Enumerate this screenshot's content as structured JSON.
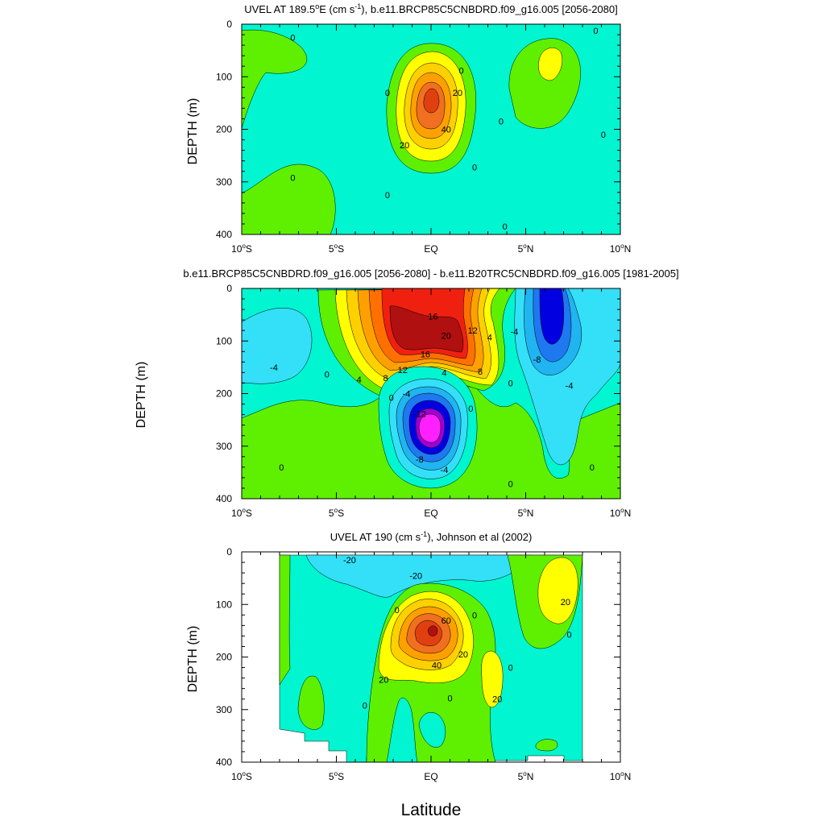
{
  "chart_data": [
    {
      "type": "heatmap",
      "subtype": "filled-contour",
      "title": "UVEL AT 189.5°E (cm s⁻¹), b.e11.BRCP85C5CNBDRD.f09_g16.005 [2056-2080]",
      "title_parts": {
        "a": "UVEL AT 189.5",
        "sup1": "o",
        "b": "E (cm s",
        "sup2": "-1",
        "c": "), b.e11.BRCP85C5CNBDRD.f09_g16.005 [2056-2080]"
      },
      "ylabel": "DEPTH (m)",
      "ylim": [
        400,
        0
      ],
      "xlim": [
        -10,
        10
      ],
      "yticks": [
        "0",
        "100",
        "200",
        "300",
        "400"
      ],
      "xticks": [
        {
          "pre": "10",
          "suf": "S"
        },
        {
          "pre": "5",
          "suf": "S"
        },
        {
          "pre": "EQ",
          "suf": ""
        },
        {
          "pre": "5",
          "suf": "N"
        },
        {
          "pre": "10",
          "suf": "N"
        }
      ],
      "contour_labels": [
        {
          "text": "0",
          "x": -7.3,
          "y": 25
        },
        {
          "text": "0",
          "x": -2.3,
          "y": 130
        },
        {
          "text": "20",
          "x": 1.4,
          "y": 130
        },
        {
          "text": "0",
          "x": 1.6,
          "y": 88
        },
        {
          "text": "40",
          "x": 0.8,
          "y": 200
        },
        {
          "text": "20",
          "x": -1.4,
          "y": 230
        },
        {
          "text": "0",
          "x": 3.7,
          "y": 185
        },
        {
          "text": "0",
          "x": 8.7,
          "y": 12
        },
        {
          "text": "0",
          "x": 9.1,
          "y": 210
        },
        {
          "text": "0",
          "x": -7.3,
          "y": 292
        },
        {
          "text": "0",
          "x": -2.3,
          "y": 325
        },
        {
          "text": "0",
          "x": 2.3,
          "y": 272
        },
        {
          "text": "0",
          "x": 3.9,
          "y": 385
        }
      ]
    },
    {
      "type": "heatmap",
      "subtype": "filled-contour",
      "title": "b.e11.BRCP85C5CNBDRD.f09_g16.005 [2056-2080] - b.e11.B20TRC5CNBDRD.f09_g16.005 [1981-2005]",
      "ylabel": "DEPTH (m)",
      "ylim": [
        400,
        0
      ],
      "xlim": [
        -10,
        10
      ],
      "yticks": [
        "0",
        "100",
        "200",
        "300",
        "400"
      ],
      "xticks": [
        {
          "pre": "10",
          "suf": "S"
        },
        {
          "pre": "5",
          "suf": "S"
        },
        {
          "pre": "EQ",
          "suf": ""
        },
        {
          "pre": "5",
          "suf": "N"
        },
        {
          "pre": "10",
          "suf": "N"
        }
      ],
      "contour_labels": [
        {
          "text": "-4",
          "x": -8.3,
          "y": 150
        },
        {
          "text": "0",
          "x": -5.5,
          "y": 163
        },
        {
          "text": "4",
          "x": -3.8,
          "y": 173
        },
        {
          "text": "8",
          "x": -2.4,
          "y": 170
        },
        {
          "text": "12",
          "x": -1.5,
          "y": 155
        },
        {
          "text": "16",
          "x": -0.3,
          "y": 125
        },
        {
          "text": "16",
          "x": 0.1,
          "y": 53
        },
        {
          "text": "20",
          "x": 0.8,
          "y": 90
        },
        {
          "text": "12",
          "x": 2.2,
          "y": 80
        },
        {
          "text": "4",
          "x": 3.1,
          "y": 93
        },
        {
          "text": "8",
          "x": 2.6,
          "y": 158
        },
        {
          "text": "4",
          "x": 0.7,
          "y": 160
        },
        {
          "text": "-4",
          "x": 4.4,
          "y": 82
        },
        {
          "text": "-8",
          "x": 5.6,
          "y": 135
        },
        {
          "text": "-4",
          "x": 7.3,
          "y": 185
        },
        {
          "text": "0",
          "x": 4.2,
          "y": 180
        },
        {
          "text": "0",
          "x": -2.1,
          "y": 208
        },
        {
          "text": "-4",
          "x": -1.3,
          "y": 200
        },
        {
          "text": "0",
          "x": 2.1,
          "y": 228
        },
        {
          "text": "-12",
          "x": -0.6,
          "y": 238
        },
        {
          "text": "-8",
          "x": -0.6,
          "y": 325
        },
        {
          "text": "-4",
          "x": 0.7,
          "y": 345
        },
        {
          "text": "0",
          "x": -7.9,
          "y": 340
        },
        {
          "text": "0",
          "x": 4.2,
          "y": 372
        },
        {
          "text": "0",
          "x": 8.5,
          "y": 340
        }
      ]
    },
    {
      "type": "heatmap",
      "subtype": "filled-contour",
      "title": "UVEL AT 190 (cm s⁻¹), Johnson et al (2002)",
      "title_parts": {
        "a": "UVEL AT 190 (cm s",
        "sup": "-1",
        "b": "), Johnson et al (2002)"
      },
      "ylabel": "DEPTH (m)",
      "xlabel": "Latitude",
      "ylim": [
        400,
        0
      ],
      "xlim": [
        -10,
        10
      ],
      "yticks": [
        "0",
        "100",
        "200",
        "300",
        "400"
      ],
      "xticks": [
        {
          "pre": "10",
          "suf": "S"
        },
        {
          "pre": "5",
          "suf": "S"
        },
        {
          "pre": "EQ",
          "suf": ""
        },
        {
          "pre": "5",
          "suf": "N"
        },
        {
          "pre": "10",
          "suf": "N"
        }
      ],
      "data_coverage_lat": [
        -8,
        8
      ],
      "contour_labels": [
        {
          "text": "-20",
          "x": -4.3,
          "y": 15
        },
        {
          "text": "-20",
          "x": -0.8,
          "y": 45
        },
        {
          "text": "0",
          "x": -1.8,
          "y": 110
        },
        {
          "text": "60",
          "x": 0.8,
          "y": 130
        },
        {
          "text": "40",
          "x": 0.3,
          "y": 215
        },
        {
          "text": "20",
          "x": 1.7,
          "y": 195
        },
        {
          "text": "0",
          "x": 2.3,
          "y": 120
        },
        {
          "text": "20",
          "x": -2.5,
          "y": 243
        },
        {
          "text": "0",
          "x": -3.5,
          "y": 292
        },
        {
          "text": "0",
          "x": 1.0,
          "y": 278
        },
        {
          "text": "20",
          "x": 3.5,
          "y": 280
        },
        {
          "text": "0",
          "x": 4.2,
          "y": 220
        },
        {
          "text": "20",
          "x": 7.1,
          "y": 95
        },
        {
          "text": "0",
          "x": 7.3,
          "y": 157
        }
      ]
    }
  ]
}
